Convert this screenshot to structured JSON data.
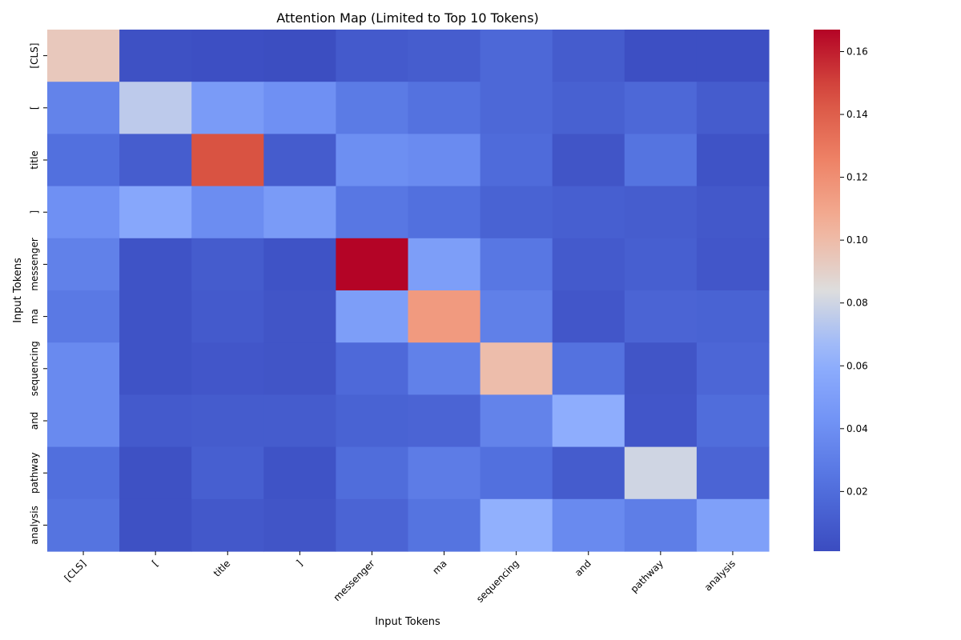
{
  "chart_data": {
    "type": "heatmap",
    "title": "Attention Map (Limited to Top 10 Tokens)",
    "xlabel": "Input Tokens",
    "ylabel": "Input Tokens",
    "x_categories": [
      "[CLS]",
      "[",
      "title",
      "]",
      "messenger",
      "ma",
      "sequencing",
      "and",
      "pathway",
      "analysis"
    ],
    "y_categories": [
      "[CLS]",
      "[",
      "title",
      "]",
      "messenger",
      "ma",
      "sequencing",
      "and",
      "pathway",
      "analysis"
    ],
    "values": [
      [
        0.094,
        0.004,
        0.003,
        0.002,
        0.009,
        0.011,
        0.017,
        0.01,
        0.003,
        0.003
      ],
      [
        0.033,
        0.075,
        0.048,
        0.041,
        0.028,
        0.023,
        0.017,
        0.013,
        0.017,
        0.01
      ],
      [
        0.022,
        0.011,
        0.145,
        0.01,
        0.04,
        0.038,
        0.019,
        0.006,
        0.024,
        0.005
      ],
      [
        0.041,
        0.056,
        0.039,
        0.048,
        0.026,
        0.022,
        0.014,
        0.012,
        0.011,
        0.008
      ],
      [
        0.032,
        0.005,
        0.01,
        0.005,
        0.167,
        0.05,
        0.026,
        0.009,
        0.012,
        0.007
      ],
      [
        0.027,
        0.005,
        0.009,
        0.006,
        0.05,
        0.115,
        0.031,
        0.007,
        0.015,
        0.014
      ],
      [
        0.037,
        0.005,
        0.007,
        0.006,
        0.018,
        0.032,
        0.099,
        0.023,
        0.006,
        0.016
      ],
      [
        0.037,
        0.009,
        0.01,
        0.01,
        0.014,
        0.015,
        0.033,
        0.06,
        0.007,
        0.02
      ],
      [
        0.021,
        0.004,
        0.012,
        0.005,
        0.02,
        0.029,
        0.022,
        0.01,
        0.08,
        0.015
      ],
      [
        0.024,
        0.004,
        0.008,
        0.006,
        0.015,
        0.024,
        0.062,
        0.037,
        0.03,
        0.051
      ]
    ],
    "vmin": 0.001,
    "vmax": 0.167,
    "colormap": "coolwarm",
    "colorbar_ticks": [
      0.02,
      0.04,
      0.06,
      0.08,
      0.1,
      0.12,
      0.14,
      0.16
    ],
    "colorbar_tick_labels": [
      "0.02",
      "0.04",
      "0.06",
      "0.08",
      "0.10",
      "0.12",
      "0.14",
      "0.16"
    ],
    "legend": "colorbar-right",
    "grid": false
  }
}
